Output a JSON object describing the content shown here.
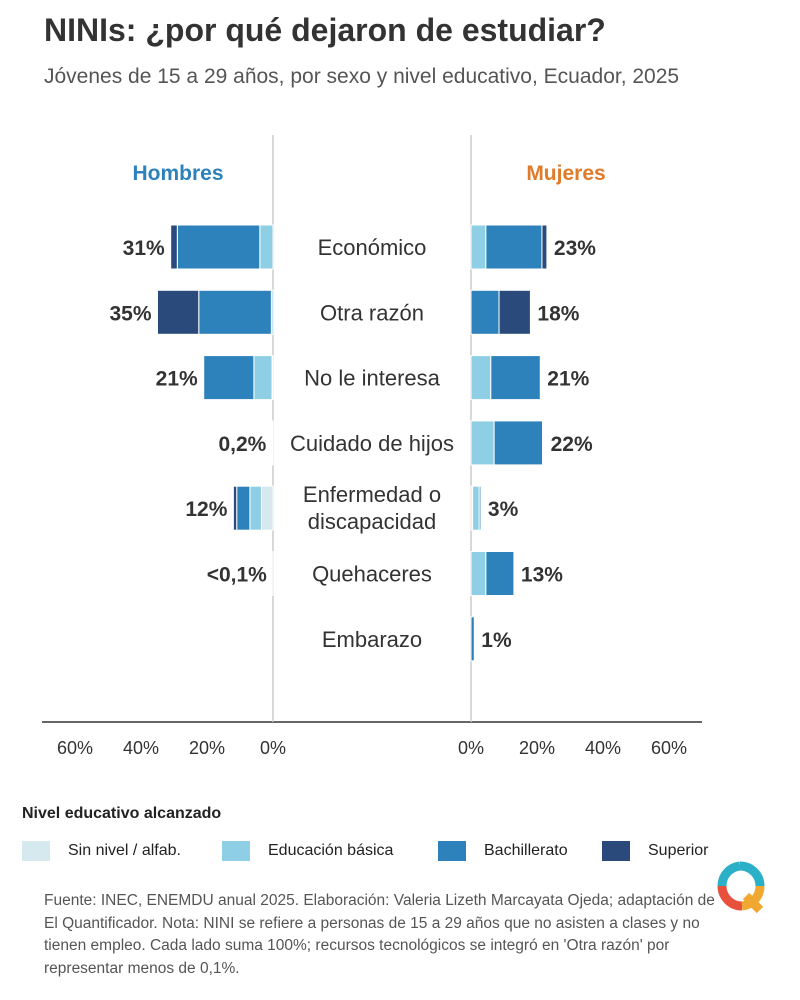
{
  "header": {
    "title": "NINIs: ¿por qué dejaron de estudiar?",
    "subtitle": "Jóvenes de 15 a 29 años, por sexo y nivel educativo, Ecuador, 2025"
  },
  "legend": {
    "title": "Nivel educativo alcanzado",
    "items": [
      {
        "label": "Sin nivel / alfab.",
        "color": "#d6e9ee"
      },
      {
        "label": "Educación básica",
        "color": "#8ecfe6"
      },
      {
        "label": "Bachillerato",
        "color": "#2e82bb"
      },
      {
        "label": "Superior",
        "color": "#2b4a7c"
      }
    ]
  },
  "footer": {
    "source": "Fuente: INEC, ENEMDU anual 2025. Elaboración: Valeria Lizeth Marcayata Ojeda; adaptación de El Quantificador. Nota: NINI se refiere a personas de 15 a 29 años que no asisten a clases y no tienen empleo. Cada lado suma 100%; recursos tecnológicos se integró en 'Otra razón' por representar menos de 0,1%."
  },
  "logo": {
    "icon": "el-quantificador-logo-icon",
    "colors": [
      "#2bb0c8",
      "#e8503e",
      "#f0a830"
    ]
  },
  "chart_data": {
    "type": "bar",
    "layout": "diverging-stacked-horizontal",
    "panels": [
      {
        "name": "Hombres",
        "color": "#2e82bb"
      },
      {
        "name": "Mujeres",
        "color": "#e07b2a"
      }
    ],
    "categories": [
      "Económico",
      "Otra razón",
      "No le interesa",
      "Cuidado de hijos",
      "Enfermedad o discapacidad",
      "Quehaceres",
      "Embarazo"
    ],
    "category_lines": [
      [
        "Económico"
      ],
      [
        "Otra razón"
      ],
      [
        "No le interesa"
      ],
      [
        "Cuidado de hijos"
      ],
      [
        "Enfermedad o",
        "discapacidad"
      ],
      [
        "Quehaceres"
      ],
      [
        "Embarazo"
      ]
    ],
    "series": [
      {
        "name": "Sin nivel / alfab.",
        "color": "#d6e9ee",
        "hombres": [
          0,
          0,
          0.3,
          0,
          3.5,
          0,
          0
        ],
        "mujeres": [
          0,
          0,
          0,
          0,
          0.5,
          0,
          0
        ]
      },
      {
        "name": "Educación básica",
        "color": "#8ecfe6",
        "hombres": [
          4,
          0.5,
          5.5,
          0,
          3.5,
          0,
          0
        ],
        "mujeres": [
          4.5,
          0,
          6,
          7,
          2,
          4.5,
          0
        ]
      },
      {
        "name": "Bachillerato",
        "color": "#2e82bb",
        "hombres": [
          25,
          22,
          15.2,
          0.2,
          4,
          0.05,
          0
        ],
        "mujeres": [
          17,
          8.5,
          15,
          14.7,
          0.5,
          8.5,
          1
        ]
      },
      {
        "name": "Superior",
        "color": "#2b4a7c",
        "hombres": [
          2,
          12.5,
          0,
          0,
          1,
          0,
          0
        ],
        "mujeres": [
          1.5,
          9.5,
          0,
          0.3,
          0,
          0,
          0
        ]
      }
    ],
    "totals": {
      "hombres": [
        "31%",
        "35%",
        "21%",
        "0,2%",
        "12%",
        "<0,1%",
        ""
      ],
      "mujeres": [
        "23%",
        "18%",
        "21%",
        "22%",
        "3%",
        "13%",
        "1%"
      ]
    },
    "xlim": [
      0,
      70
    ],
    "ticks": [
      0,
      20,
      40,
      60
    ],
    "tick_labels": [
      "0%",
      "20%",
      "40%",
      "60%"
    ]
  }
}
